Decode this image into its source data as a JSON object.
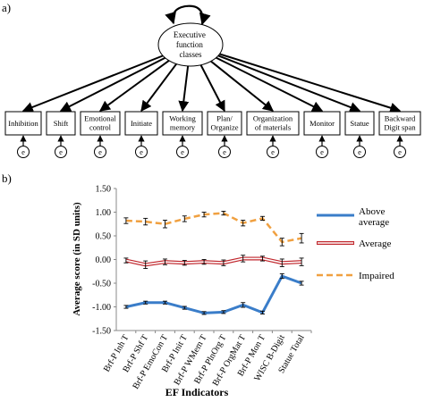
{
  "panel_a": {
    "label": "a)",
    "central": [
      "Executive",
      "function",
      "classes"
    ],
    "boxes": [
      [
        "Inhibition"
      ],
      [
        "Shift"
      ],
      [
        "Emotional",
        "control"
      ],
      [
        "Initiate"
      ],
      [
        "Working",
        "memory"
      ],
      [
        "Plan/",
        "Organize"
      ],
      [
        "Organization",
        "of materials"
      ],
      [
        "Monitor"
      ],
      [
        "Statue"
      ],
      [
        "Backward",
        "Digit span"
      ]
    ],
    "error_label": "e"
  },
  "panel_b": {
    "label": "b)"
  },
  "chart_data": {
    "type": "line",
    "categories": [
      "Brf-P Inh T",
      "Brf-P Shf T",
      "Brf-P EmoCon T",
      "Brf-P Init T",
      "Brf-P WMem T",
      "Brf-P PlnOrg T",
      "Brf-P OrgMat T",
      "Brf-P Mon T",
      "WISC B-Digit",
      "Statue Total"
    ],
    "ylabel": "Average score (in SD units)",
    "xlabel": "EF Indicators",
    "ylim": [
      -1.5,
      1.5
    ],
    "yticks": [
      "1.50",
      "1.00",
      "0.50",
      "0.00",
      "-0.50",
      "-1.00",
      "-1.50"
    ],
    "series": [
      {
        "name": "Above average",
        "color": "#3a7dc9",
        "style": "solid",
        "values": [
          -1.0,
          -0.91,
          -0.91,
          -1.02,
          -1.13,
          -1.11,
          -0.96,
          -1.12,
          -0.35,
          -0.5
        ],
        "err": [
          0.03,
          0.03,
          0.03,
          0.03,
          0.03,
          0.03,
          0.05,
          0.03,
          0.05,
          0.04
        ]
      },
      {
        "name": "Average",
        "color": "#c0262c",
        "style": "double",
        "values": [
          -0.02,
          -0.11,
          -0.05,
          -0.07,
          -0.05,
          -0.07,
          0.02,
          0.02,
          -0.07,
          -0.05
        ],
        "err": [
          0.05,
          0.08,
          0.06,
          0.05,
          0.05,
          0.06,
          0.07,
          0.05,
          0.08,
          0.08
        ]
      },
      {
        "name": "Impaired",
        "color": "#f0a040",
        "style": "dashed",
        "values": [
          0.82,
          0.8,
          0.75,
          0.86,
          0.95,
          0.98,
          0.77,
          0.87,
          0.37,
          0.45
        ],
        "err": [
          0.06,
          0.07,
          0.08,
          0.06,
          0.05,
          0.04,
          0.06,
          0.04,
          0.08,
          0.1
        ]
      }
    ],
    "legend_position": "right",
    "legend_labels": [
      [
        "Above",
        "average"
      ],
      [
        "Average"
      ],
      [
        "Impaired"
      ]
    ]
  }
}
